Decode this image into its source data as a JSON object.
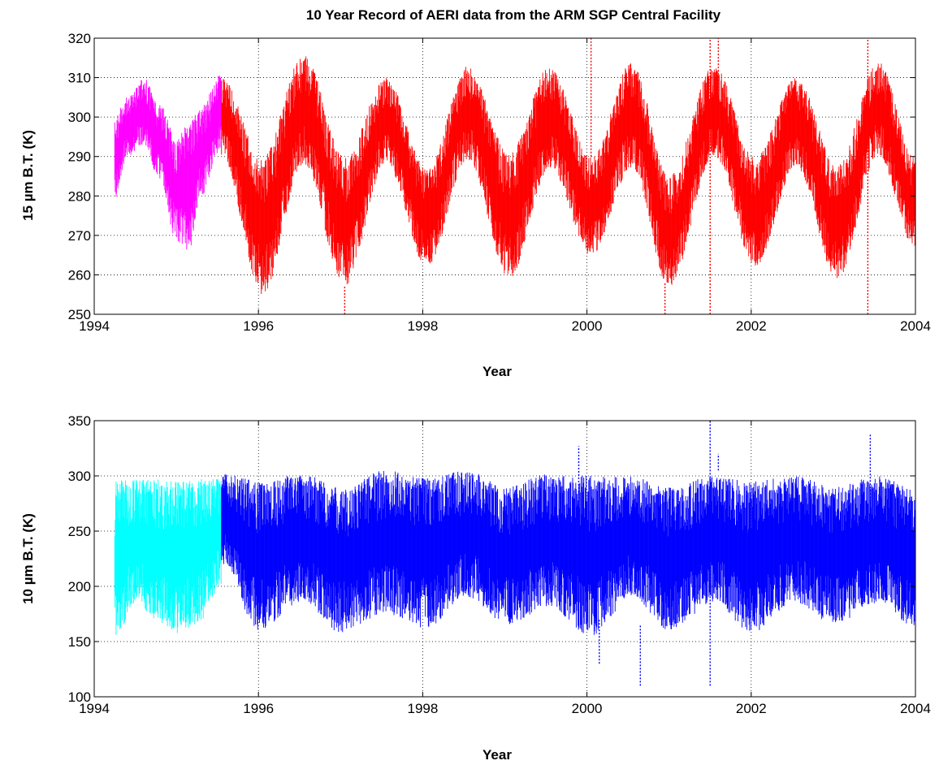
{
  "chart_data": [
    {
      "type": "scatter",
      "title": "10 Year Record of AERI data from the ARM SGP Central Facility",
      "xlabel": "Year",
      "ylabel": "15 µm B.T. (K)",
      "xlim": [
        1994,
        2004
      ],
      "ylim": [
        250,
        320
      ],
      "xticks": [
        1994,
        1996,
        1998,
        2000,
        2002,
        2004
      ],
      "yticks": [
        250,
        260,
        270,
        280,
        290,
        300,
        310,
        320
      ],
      "grid": true,
      "series": [
        {
          "color": "#ff00ff",
          "x_range": [
            1994.25,
            1995.55
          ],
          "envelope": [
            {
              "x": 1994.25,
              "lo": 279,
              "hi": 301
            },
            {
              "x": 1994.4,
              "lo": 290,
              "hi": 305
            },
            {
              "x": 1994.6,
              "lo": 293,
              "hi": 310
            },
            {
              "x": 1994.8,
              "lo": 284,
              "hi": 303
            },
            {
              "x": 1995.0,
              "lo": 268,
              "hi": 295
            },
            {
              "x": 1995.15,
              "lo": 266,
              "hi": 298
            },
            {
              "x": 1995.3,
              "lo": 280,
              "hi": 303
            },
            {
              "x": 1995.55,
              "lo": 292,
              "hi": 311
            }
          ]
        },
        {
          "color": "#ff0000",
          "x_range": [
            1995.55,
            2004.0
          ],
          "envelope": [
            {
              "x": 1995.55,
              "lo": 290,
              "hi": 310
            },
            {
              "x": 1996.05,
              "lo": 255,
              "hi": 290
            },
            {
              "x": 1996.55,
              "lo": 288,
              "hi": 316
            },
            {
              "x": 1997.05,
              "lo": 257,
              "hi": 290
            },
            {
              "x": 1997.55,
              "lo": 288,
              "hi": 310
            },
            {
              "x": 1998.05,
              "lo": 262,
              "hi": 287
            },
            {
              "x": 1998.55,
              "lo": 289,
              "hi": 313
            },
            {
              "x": 1999.05,
              "lo": 259,
              "hi": 291
            },
            {
              "x": 1999.55,
              "lo": 287,
              "hi": 313
            },
            {
              "x": 2000.05,
              "lo": 265,
              "hi": 290
            },
            {
              "x": 2000.55,
              "lo": 287,
              "hi": 314
            },
            {
              "x": 2001.0,
              "lo": 257,
              "hi": 285
            },
            {
              "x": 2001.55,
              "lo": 290,
              "hi": 313
            },
            {
              "x": 2002.05,
              "lo": 262,
              "hi": 290
            },
            {
              "x": 2002.55,
              "lo": 287,
              "hi": 310
            },
            {
              "x": 2003.05,
              "lo": 259,
              "hi": 288
            },
            {
              "x": 2003.55,
              "lo": 290,
              "hi": 314
            },
            {
              "x": 2004.0,
              "lo": 266,
              "hi": 290
            }
          ],
          "outlier_spikes": [
            {
              "x": 1997.05,
              "lo": 250,
              "hi": 257
            },
            {
              "x": 2000.05,
              "lo": 290,
              "hi": 320
            },
            {
              "x": 2000.95,
              "lo": 250,
              "hi": 258
            },
            {
              "x": 2001.5,
              "lo": 250,
              "hi": 320
            },
            {
              "x": 2001.6,
              "lo": 300,
              "hi": 320
            },
            {
              "x": 2003.42,
              "lo": 250,
              "hi": 320
            }
          ]
        }
      ]
    },
    {
      "type": "scatter",
      "title": "",
      "xlabel": "Year",
      "ylabel": "10 µm B.T. (K)",
      "xlim": [
        1994,
        2004
      ],
      "ylim": [
        100,
        350
      ],
      "xticks": [
        1994,
        1996,
        1998,
        2000,
        2002,
        2004
      ],
      "yticks": [
        100,
        150,
        200,
        250,
        300,
        350
      ],
      "grid": true,
      "series": [
        {
          "color": "#00ffff",
          "x_range": [
            1994.25,
            1995.55
          ],
          "envelope": [
            {
              "x": 1994.25,
              "lo": 150,
              "hi": 297
            },
            {
              "x": 1994.5,
              "lo": 185,
              "hi": 297
            },
            {
              "x": 1994.75,
              "lo": 170,
              "hi": 297
            },
            {
              "x": 1995.0,
              "lo": 155,
              "hi": 295
            },
            {
              "x": 1995.25,
              "lo": 165,
              "hi": 298
            },
            {
              "x": 1995.55,
              "lo": 200,
              "hi": 298
            }
          ]
        },
        {
          "color": "#0000ff",
          "x_range": [
            1995.55,
            2004.0
          ],
          "envelope": [
            {
              "x": 1995.55,
              "lo": 220,
              "hi": 302
            },
            {
              "x": 1996.0,
              "lo": 160,
              "hi": 296
            },
            {
              "x": 1996.55,
              "lo": 185,
              "hi": 302
            },
            {
              "x": 1997.0,
              "lo": 158,
              "hi": 290
            },
            {
              "x": 1997.55,
              "lo": 175,
              "hi": 305
            },
            {
              "x": 1998.05,
              "lo": 162,
              "hi": 298
            },
            {
              "x": 1998.55,
              "lo": 190,
              "hi": 305
            },
            {
              "x": 1999.0,
              "lo": 165,
              "hi": 290
            },
            {
              "x": 1999.55,
              "lo": 180,
              "hi": 302
            },
            {
              "x": 2000.05,
              "lo": 155,
              "hi": 300
            },
            {
              "x": 2000.55,
              "lo": 190,
              "hi": 300
            },
            {
              "x": 2001.0,
              "lo": 160,
              "hi": 290
            },
            {
              "x": 2001.55,
              "lo": 185,
              "hi": 300
            },
            {
              "x": 2002.0,
              "lo": 158,
              "hi": 296
            },
            {
              "x": 2002.55,
              "lo": 185,
              "hi": 300
            },
            {
              "x": 2003.0,
              "lo": 165,
              "hi": 290
            },
            {
              "x": 2003.55,
              "lo": 185,
              "hi": 300
            },
            {
              "x": 2004.0,
              "lo": 162,
              "hi": 288
            }
          ],
          "outlier_spikes": [
            {
              "x": 1999.9,
              "lo": 200,
              "hi": 327
            },
            {
              "x": 2000.15,
              "lo": 130,
              "hi": 170
            },
            {
              "x": 2000.65,
              "lo": 110,
              "hi": 165
            },
            {
              "x": 2001.5,
              "lo": 110,
              "hi": 350
            },
            {
              "x": 2001.6,
              "lo": 305,
              "hi": 320
            },
            {
              "x": 2003.45,
              "lo": 280,
              "hi": 338
            }
          ]
        }
      ]
    }
  ]
}
